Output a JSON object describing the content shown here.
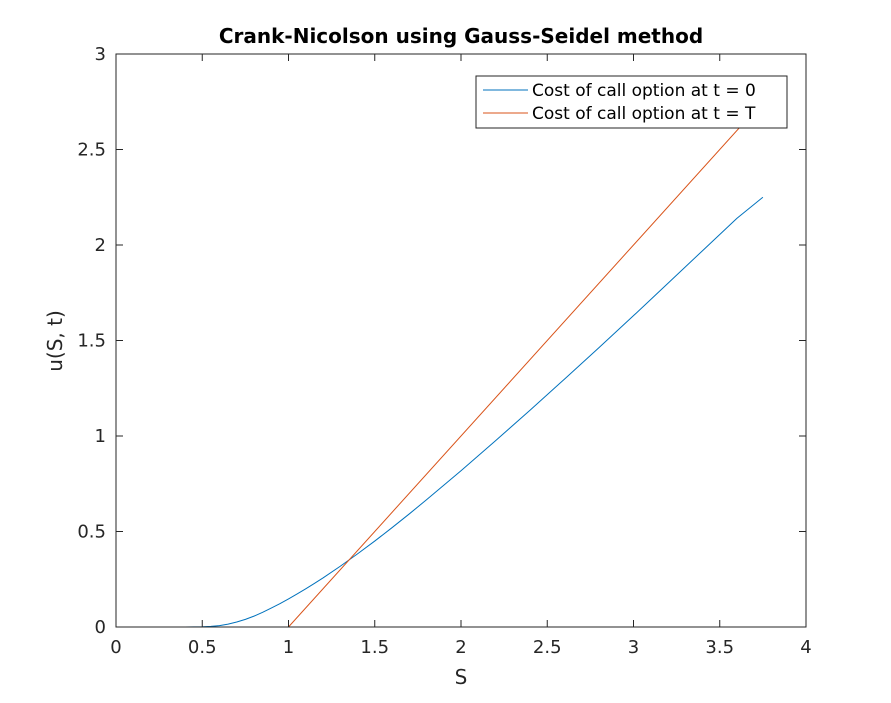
{
  "chart_data": {
    "type": "line",
    "title": "Crank-Nicolson using Gauss-Seidel method",
    "xlabel": "S",
    "ylabel": "u(S, t)",
    "xlim": [
      0,
      4
    ],
    "ylim": [
      0,
      3
    ],
    "xticks": [
      0,
      0.5,
      1,
      1.5,
      2,
      2.5,
      3,
      3.5,
      4
    ],
    "yticks": [
      0,
      0.5,
      1,
      1.5,
      2,
      2.5,
      3
    ],
    "xtick_labels": [
      "0",
      "0.5",
      "1",
      "1.5",
      "2",
      "2.5",
      "3",
      "3.5",
      "4"
    ],
    "ytick_labels": [
      "0",
      "0.5",
      "1",
      "1.5",
      "2",
      "2.5",
      "3"
    ],
    "grid": false,
    "legend_position": "top-right",
    "series": [
      {
        "name": "Cost of call option at t = 0",
        "color": "#0072BD",
        "x": [
          0,
          0.1,
          0.2,
          0.3,
          0.4,
          0.5,
          0.55,
          0.6,
          0.65,
          0.7,
          0.75,
          0.8,
          0.85,
          0.9,
          0.95,
          1.0,
          1.05,
          1.1,
          1.15,
          1.2,
          1.3,
          1.4,
          1.5,
          1.6,
          1.7,
          1.8,
          1.9,
          2.0,
          2.2,
          2.4,
          2.6,
          2.8,
          3.0,
          3.2,
          3.4,
          3.6,
          3.75
        ],
        "y": [
          0,
          0,
          0,
          0,
          0,
          0.001,
          0.003,
          0.007,
          0.015,
          0.026,
          0.04,
          0.057,
          0.077,
          0.099,
          0.122,
          0.147,
          0.173,
          0.2,
          0.228,
          0.257,
          0.318,
          0.383,
          0.45,
          0.52,
          0.592,
          0.666,
          0.742,
          0.818,
          0.975,
          1.135,
          1.298,
          1.463,
          1.63,
          1.8,
          1.97,
          2.14,
          2.25
        ]
      },
      {
        "name": "Cost of call option at t = T",
        "color": "#D95319",
        "x": [
          0,
          1.0,
          3.75
        ],
        "y": [
          0,
          0,
          2.75
        ]
      }
    ]
  }
}
